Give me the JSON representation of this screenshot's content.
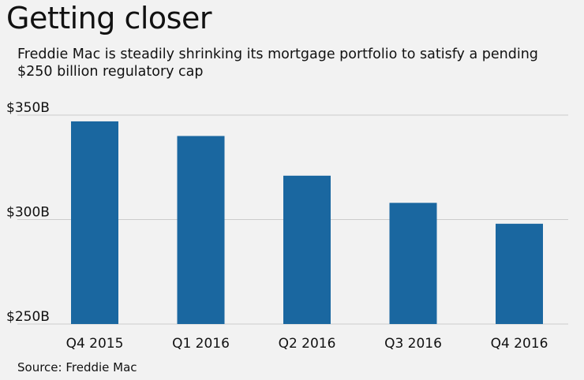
{
  "chart_data": {
    "type": "bar",
    "title": "Getting closer",
    "subtitle": "Freddie Mac is steadily shrinking its mortgage portfolio to satisfy a pending $250 billion regulatory cap",
    "source": "Source: Freddie Mac",
    "xlabel": "",
    "ylabel": "",
    "categories": [
      "Q4 2015",
      "Q1 2016",
      "Q2 2016",
      "Q3 2016",
      "Q4 2016"
    ],
    "values": [
      347,
      340,
      321,
      308,
      298
    ],
    "units": "billion USD",
    "ylim": [
      250,
      350
    ],
    "yticks": [
      250,
      300,
      350
    ],
    "ytick_labels": [
      "$250B",
      "$300B",
      "$350B"
    ],
    "grid": true,
    "legend": "none"
  },
  "colors": {
    "bar": "#1a67a0",
    "grid": "#cccccc",
    "background": "#f2f2f2"
  }
}
